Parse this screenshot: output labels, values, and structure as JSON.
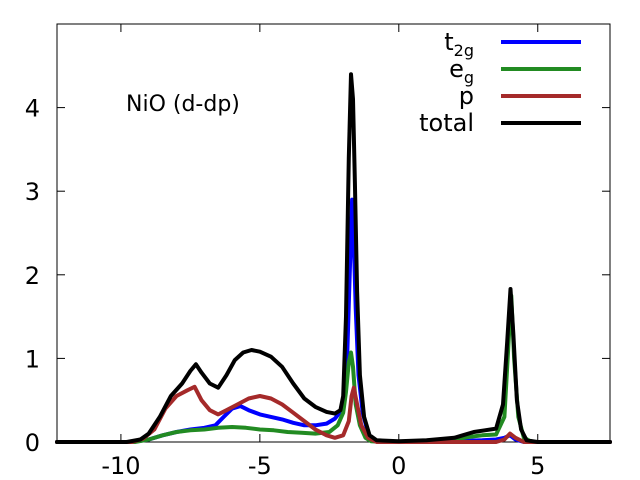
{
  "chart_data": {
    "type": "line",
    "title": "",
    "annotation": "NiO (d-dp)",
    "xlabel": "",
    "ylabel": "",
    "xlim": [
      -12.3,
      7.6
    ],
    "ylim": [
      0,
      5.0
    ],
    "xticks": [
      -10,
      -5,
      0,
      5
    ],
    "yticks": [
      0,
      1,
      2,
      3,
      4
    ],
    "xtick_labels": [
      "-10",
      "-5",
      "0",
      "5"
    ],
    "ytick_labels": [
      "0",
      "1",
      "2",
      "3",
      "4"
    ],
    "grid": false,
    "legend_position": "top-right",
    "legend": [
      {
        "base": "t",
        "sub": "2g"
      },
      {
        "base": "e",
        "sub": "g"
      },
      {
        "base": "p",
        "sub": ""
      },
      {
        "base": "total",
        "sub": ""
      }
    ],
    "series": [
      {
        "name": "t2g",
        "color": "#0000ff",
        "points": [
          [
            -12.3,
            0
          ],
          [
            -9.6,
            0
          ],
          [
            -9.0,
            0.03
          ],
          [
            -8.5,
            0.08
          ],
          [
            -8.0,
            0.12
          ],
          [
            -7.5,
            0.15
          ],
          [
            -7.0,
            0.17
          ],
          [
            -6.6,
            0.2
          ],
          [
            -6.3,
            0.3
          ],
          [
            -6.0,
            0.4
          ],
          [
            -5.7,
            0.43
          ],
          [
            -5.4,
            0.38
          ],
          [
            -5.0,
            0.33
          ],
          [
            -4.6,
            0.3
          ],
          [
            -4.2,
            0.27
          ],
          [
            -3.8,
            0.23
          ],
          [
            -3.4,
            0.2
          ],
          [
            -3.0,
            0.2
          ],
          [
            -2.6,
            0.22
          ],
          [
            -2.3,
            0.28
          ],
          [
            -2.1,
            0.36
          ],
          [
            -1.95,
            0.5
          ],
          [
            -1.85,
            1.1
          ],
          [
            -1.75,
            2.2
          ],
          [
            -1.68,
            2.9
          ],
          [
            -1.62,
            2.4
          ],
          [
            -1.55,
            1.6
          ],
          [
            -1.45,
            0.8
          ],
          [
            -1.3,
            0.35
          ],
          [
            -1.1,
            0.1
          ],
          [
            -0.9,
            0.02
          ],
          [
            -0.5,
            0
          ],
          [
            2.0,
            0.01
          ],
          [
            3.0,
            0.02
          ],
          [
            3.5,
            0.03
          ],
          [
            3.8,
            0.05
          ],
          [
            4.0,
            0.08
          ],
          [
            4.2,
            0.03
          ],
          [
            4.5,
            0
          ],
          [
            7.6,
            0
          ]
        ]
      },
      {
        "name": "eg",
        "color": "#228b22",
        "points": [
          [
            -12.3,
            0
          ],
          [
            -9.5,
            0
          ],
          [
            -9.0,
            0.03
          ],
          [
            -8.5,
            0.08
          ],
          [
            -8.0,
            0.12
          ],
          [
            -7.5,
            0.14
          ],
          [
            -7.0,
            0.15
          ],
          [
            -6.5,
            0.17
          ],
          [
            -6.0,
            0.18
          ],
          [
            -5.5,
            0.17
          ],
          [
            -5.0,
            0.15
          ],
          [
            -4.5,
            0.14
          ],
          [
            -4.0,
            0.12
          ],
          [
            -3.5,
            0.11
          ],
          [
            -3.0,
            0.1
          ],
          [
            -2.5,
            0.12
          ],
          [
            -2.2,
            0.2
          ],
          [
            -2.0,
            0.35
          ],
          [
            -1.9,
            0.6
          ],
          [
            -1.8,
            0.95
          ],
          [
            -1.72,
            1.07
          ],
          [
            -1.65,
            0.9
          ],
          [
            -1.55,
            0.45
          ],
          [
            -1.4,
            0.2
          ],
          [
            -1.2,
            0.05
          ],
          [
            -1.0,
            0.01
          ],
          [
            -0.5,
            0
          ],
          [
            1.0,
            0.01
          ],
          [
            2.0,
            0.03
          ],
          [
            2.5,
            0.06
          ],
          [
            3.0,
            0.08
          ],
          [
            3.5,
            0.09
          ],
          [
            3.8,
            0.3
          ],
          [
            3.95,
            1.2
          ],
          [
            4.05,
            1.75
          ],
          [
            4.15,
            1.0
          ],
          [
            4.3,
            0.3
          ],
          [
            4.5,
            0.05
          ],
          [
            4.8,
            0
          ],
          [
            7.6,
            0
          ]
        ]
      },
      {
        "name": "p",
        "color": "#a52a2a",
        "points": [
          [
            -12.3,
            0
          ],
          [
            -9.6,
            0
          ],
          [
            -9.2,
            0.04
          ],
          [
            -8.8,
            0.15
          ],
          [
            -8.4,
            0.4
          ],
          [
            -8.0,
            0.55
          ],
          [
            -7.6,
            0.62
          ],
          [
            -7.35,
            0.66
          ],
          [
            -7.1,
            0.5
          ],
          [
            -6.8,
            0.38
          ],
          [
            -6.5,
            0.33
          ],
          [
            -6.2,
            0.38
          ],
          [
            -5.8,
            0.45
          ],
          [
            -5.4,
            0.52
          ],
          [
            -5.0,
            0.55
          ],
          [
            -4.6,
            0.52
          ],
          [
            -4.2,
            0.45
          ],
          [
            -3.8,
            0.35
          ],
          [
            -3.4,
            0.25
          ],
          [
            -3.0,
            0.15
          ],
          [
            -2.6,
            0.08
          ],
          [
            -2.3,
            0.05
          ],
          [
            -2.0,
            0.08
          ],
          [
            -1.8,
            0.25
          ],
          [
            -1.7,
            0.55
          ],
          [
            -1.62,
            0.65
          ],
          [
            -1.5,
            0.45
          ],
          [
            -1.35,
            0.2
          ],
          [
            -1.1,
            0.05
          ],
          [
            -0.8,
            0
          ],
          [
            3.5,
            0
          ],
          [
            3.8,
            0.03
          ],
          [
            4.0,
            0.1
          ],
          [
            4.2,
            0.05
          ],
          [
            4.5,
            0
          ],
          [
            7.6,
            0
          ]
        ]
      },
      {
        "name": "total",
        "color": "#000000",
        "points": [
          [
            -12.3,
            0
          ],
          [
            -9.8,
            0
          ],
          [
            -9.3,
            0.03
          ],
          [
            -9.0,
            0.1
          ],
          [
            -8.6,
            0.3
          ],
          [
            -8.2,
            0.55
          ],
          [
            -7.8,
            0.7
          ],
          [
            -7.5,
            0.85
          ],
          [
            -7.3,
            0.93
          ],
          [
            -7.1,
            0.83
          ],
          [
            -6.8,
            0.7
          ],
          [
            -6.5,
            0.65
          ],
          [
            -6.2,
            0.8
          ],
          [
            -5.9,
            0.98
          ],
          [
            -5.6,
            1.07
          ],
          [
            -5.3,
            1.1
          ],
          [
            -5.0,
            1.08
          ],
          [
            -4.6,
            1.02
          ],
          [
            -4.2,
            0.9
          ],
          [
            -3.8,
            0.7
          ],
          [
            -3.4,
            0.52
          ],
          [
            -3.0,
            0.42
          ],
          [
            -2.6,
            0.36
          ],
          [
            -2.3,
            0.34
          ],
          [
            -2.1,
            0.38
          ],
          [
            -2.0,
            0.55
          ],
          [
            -1.9,
            1.5
          ],
          [
            -1.8,
            3.4
          ],
          [
            -1.72,
            4.4
          ],
          [
            -1.65,
            4.1
          ],
          [
            -1.58,
            3.1
          ],
          [
            -1.5,
            1.8
          ],
          [
            -1.4,
            0.8
          ],
          [
            -1.25,
            0.3
          ],
          [
            -1.05,
            0.08
          ],
          [
            -0.8,
            0.02
          ],
          [
            0.0,
            0.01
          ],
          [
            1.0,
            0.02
          ],
          [
            2.0,
            0.05
          ],
          [
            2.3,
            0.08
          ],
          [
            2.7,
            0.12
          ],
          [
            3.1,
            0.14
          ],
          [
            3.5,
            0.16
          ],
          [
            3.75,
            0.45
          ],
          [
            3.9,
            1.2
          ],
          [
            4.02,
            1.83
          ],
          [
            4.12,
            1.3
          ],
          [
            4.25,
            0.5
          ],
          [
            4.4,
            0.15
          ],
          [
            4.6,
            0.02
          ],
          [
            5.0,
            0
          ],
          [
            7.6,
            0
          ]
        ]
      }
    ]
  }
}
